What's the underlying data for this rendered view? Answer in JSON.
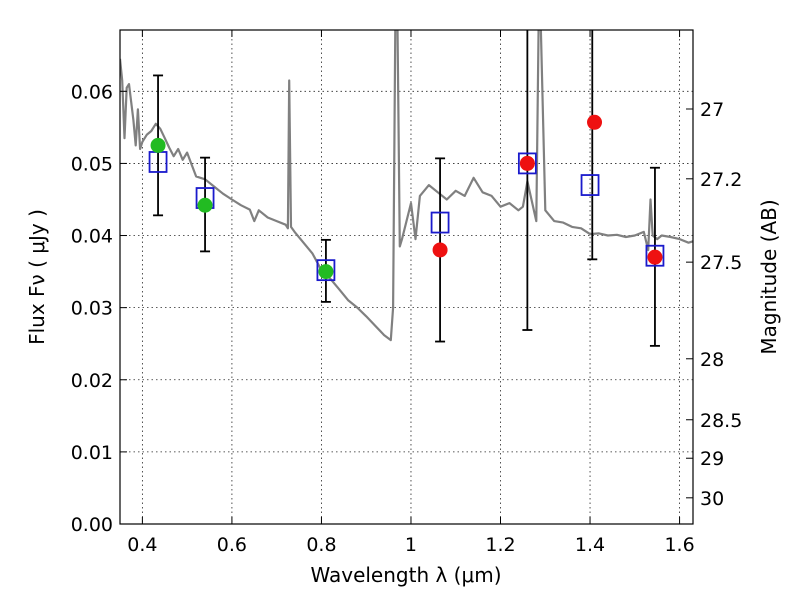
{
  "chart_data": {
    "type": "scatter",
    "xlabel": "Wavelength  λ (μm)",
    "ylabel": "Flux  Fν  ( μJy )",
    "y2label": "Magnitude (AB)",
    "xlim": [
      0.35,
      1.63
    ],
    "ylim": [
      0.0,
      0.0685
    ],
    "x_ticks": [
      0.4,
      0.6,
      0.8,
      1.0,
      1.2,
      1.4,
      1.6
    ],
    "x_tick_labels": [
      "0.4",
      "0.6",
      "0.8",
      "1",
      "1.2",
      "1.4",
      "1.6"
    ],
    "y_ticks": [
      0.0,
      0.01,
      0.02,
      0.03,
      0.04,
      0.05,
      0.06
    ],
    "y_tick_labels": [
      "0.00",
      "0.01",
      "0.02",
      "0.03",
      "0.04",
      "0.05",
      "0.06"
    ],
    "y2_ticks": [
      27,
      27.2,
      27.5,
      28,
      28.5,
      29,
      30
    ],
    "y2_tick_labels": [
      "27",
      "27.2",
      "27.5",
      "28",
      "28.5",
      "29",
      "30"
    ],
    "grid": true,
    "colors": {
      "spectrum": "#808080",
      "detection": "#22bb22",
      "upper": "#ee1111",
      "model": "#1a1acc",
      "errorbar": "#000000"
    },
    "spectrum": {
      "x": [
        0.35,
        0.355,
        0.36,
        0.365,
        0.37,
        0.375,
        0.38,
        0.385,
        0.39,
        0.395,
        0.4,
        0.41,
        0.42,
        0.43,
        0.44,
        0.45,
        0.46,
        0.47,
        0.48,
        0.49,
        0.5,
        0.52,
        0.54,
        0.56,
        0.58,
        0.6,
        0.62,
        0.64,
        0.65,
        0.66,
        0.68,
        0.7,
        0.72,
        0.725,
        0.728,
        0.732,
        0.74,
        0.76,
        0.78,
        0.8,
        0.82,
        0.84,
        0.86,
        0.88,
        0.9,
        0.92,
        0.94,
        0.955,
        0.96,
        0.965,
        0.97,
        0.975,
        0.98,
        0.99,
        1.0,
        1.01,
        1.02,
        1.04,
        1.06,
        1.08,
        1.1,
        1.12,
        1.14,
        1.16,
        1.18,
        1.2,
        1.22,
        1.24,
        1.25,
        1.26,
        1.28,
        1.285,
        1.29,
        1.3,
        1.32,
        1.34,
        1.36,
        1.38,
        1.4,
        1.42,
        1.44,
        1.46,
        1.48,
        1.5,
        1.52,
        1.53,
        1.535,
        1.54,
        1.55,
        1.56,
        1.58,
        1.6,
        1.62,
        1.63
      ],
      "y": [
        0.0645,
        0.0615,
        0.0535,
        0.0605,
        0.061,
        0.0585,
        0.056,
        0.0525,
        0.0575,
        0.052,
        0.053,
        0.054,
        0.0545,
        0.0555,
        0.0548,
        0.0535,
        0.0522,
        0.051,
        0.052,
        0.0505,
        0.0515,
        0.0482,
        0.0478,
        0.0468,
        0.0458,
        0.045,
        0.0442,
        0.0436,
        0.042,
        0.0435,
        0.0425,
        0.042,
        0.0415,
        0.041,
        0.0615,
        0.0412,
        0.0405,
        0.039,
        0.0375,
        0.0352,
        0.034,
        0.0325,
        0.031,
        0.03,
        0.0288,
        0.0275,
        0.0262,
        0.0255,
        0.03,
        0.069,
        0.069,
        0.0385,
        0.0395,
        0.042,
        0.0445,
        0.0395,
        0.0455,
        0.047,
        0.046,
        0.045,
        0.0462,
        0.0455,
        0.048,
        0.046,
        0.0455,
        0.044,
        0.0445,
        0.0435,
        0.044,
        0.0475,
        0.042,
        0.069,
        0.069,
        0.0435,
        0.042,
        0.0418,
        0.0412,
        0.041,
        0.0402,
        0.0403,
        0.04,
        0.0401,
        0.0398,
        0.04,
        0.0405,
        0.038,
        0.045,
        0.04,
        0.0395,
        0.04,
        0.0398,
        0.0395,
        0.039,
        0.0392
      ]
    },
    "series": [
      {
        "role": "detection",
        "x": [
          0.435,
          0.54,
          0.81
        ],
        "y": [
          0.0525,
          0.0442,
          0.035
        ]
      },
      {
        "role": "upper",
        "x": [
          1.065,
          1.26,
          1.41,
          1.545
        ],
        "y": [
          0.038,
          0.05,
          0.0557,
          0.037
        ]
      },
      {
        "role": "model",
        "x": [
          0.435,
          0.54,
          0.81,
          1.065,
          1.26,
          1.4,
          1.545
        ],
        "y": [
          0.0502,
          0.0452,
          0.0352,
          0.0418,
          0.05,
          0.047,
          0.0372
        ]
      }
    ],
    "error_bars": [
      {
        "x": 0.435,
        "low": 0.0428,
        "high": 0.0622
      },
      {
        "x": 0.54,
        "low": 0.0378,
        "high": 0.0508
      },
      {
        "x": 0.81,
        "low": 0.0308,
        "high": 0.0394
      },
      {
        "x": 1.065,
        "low": 0.0253,
        "high": 0.0507
      },
      {
        "x": 1.26,
        "low": 0.0269,
        "high": 0.071
      },
      {
        "x": 1.405,
        "low": 0.0367,
        "high": 0.071
      },
      {
        "x": 1.545,
        "low": 0.0247,
        "high": 0.0494
      }
    ]
  }
}
